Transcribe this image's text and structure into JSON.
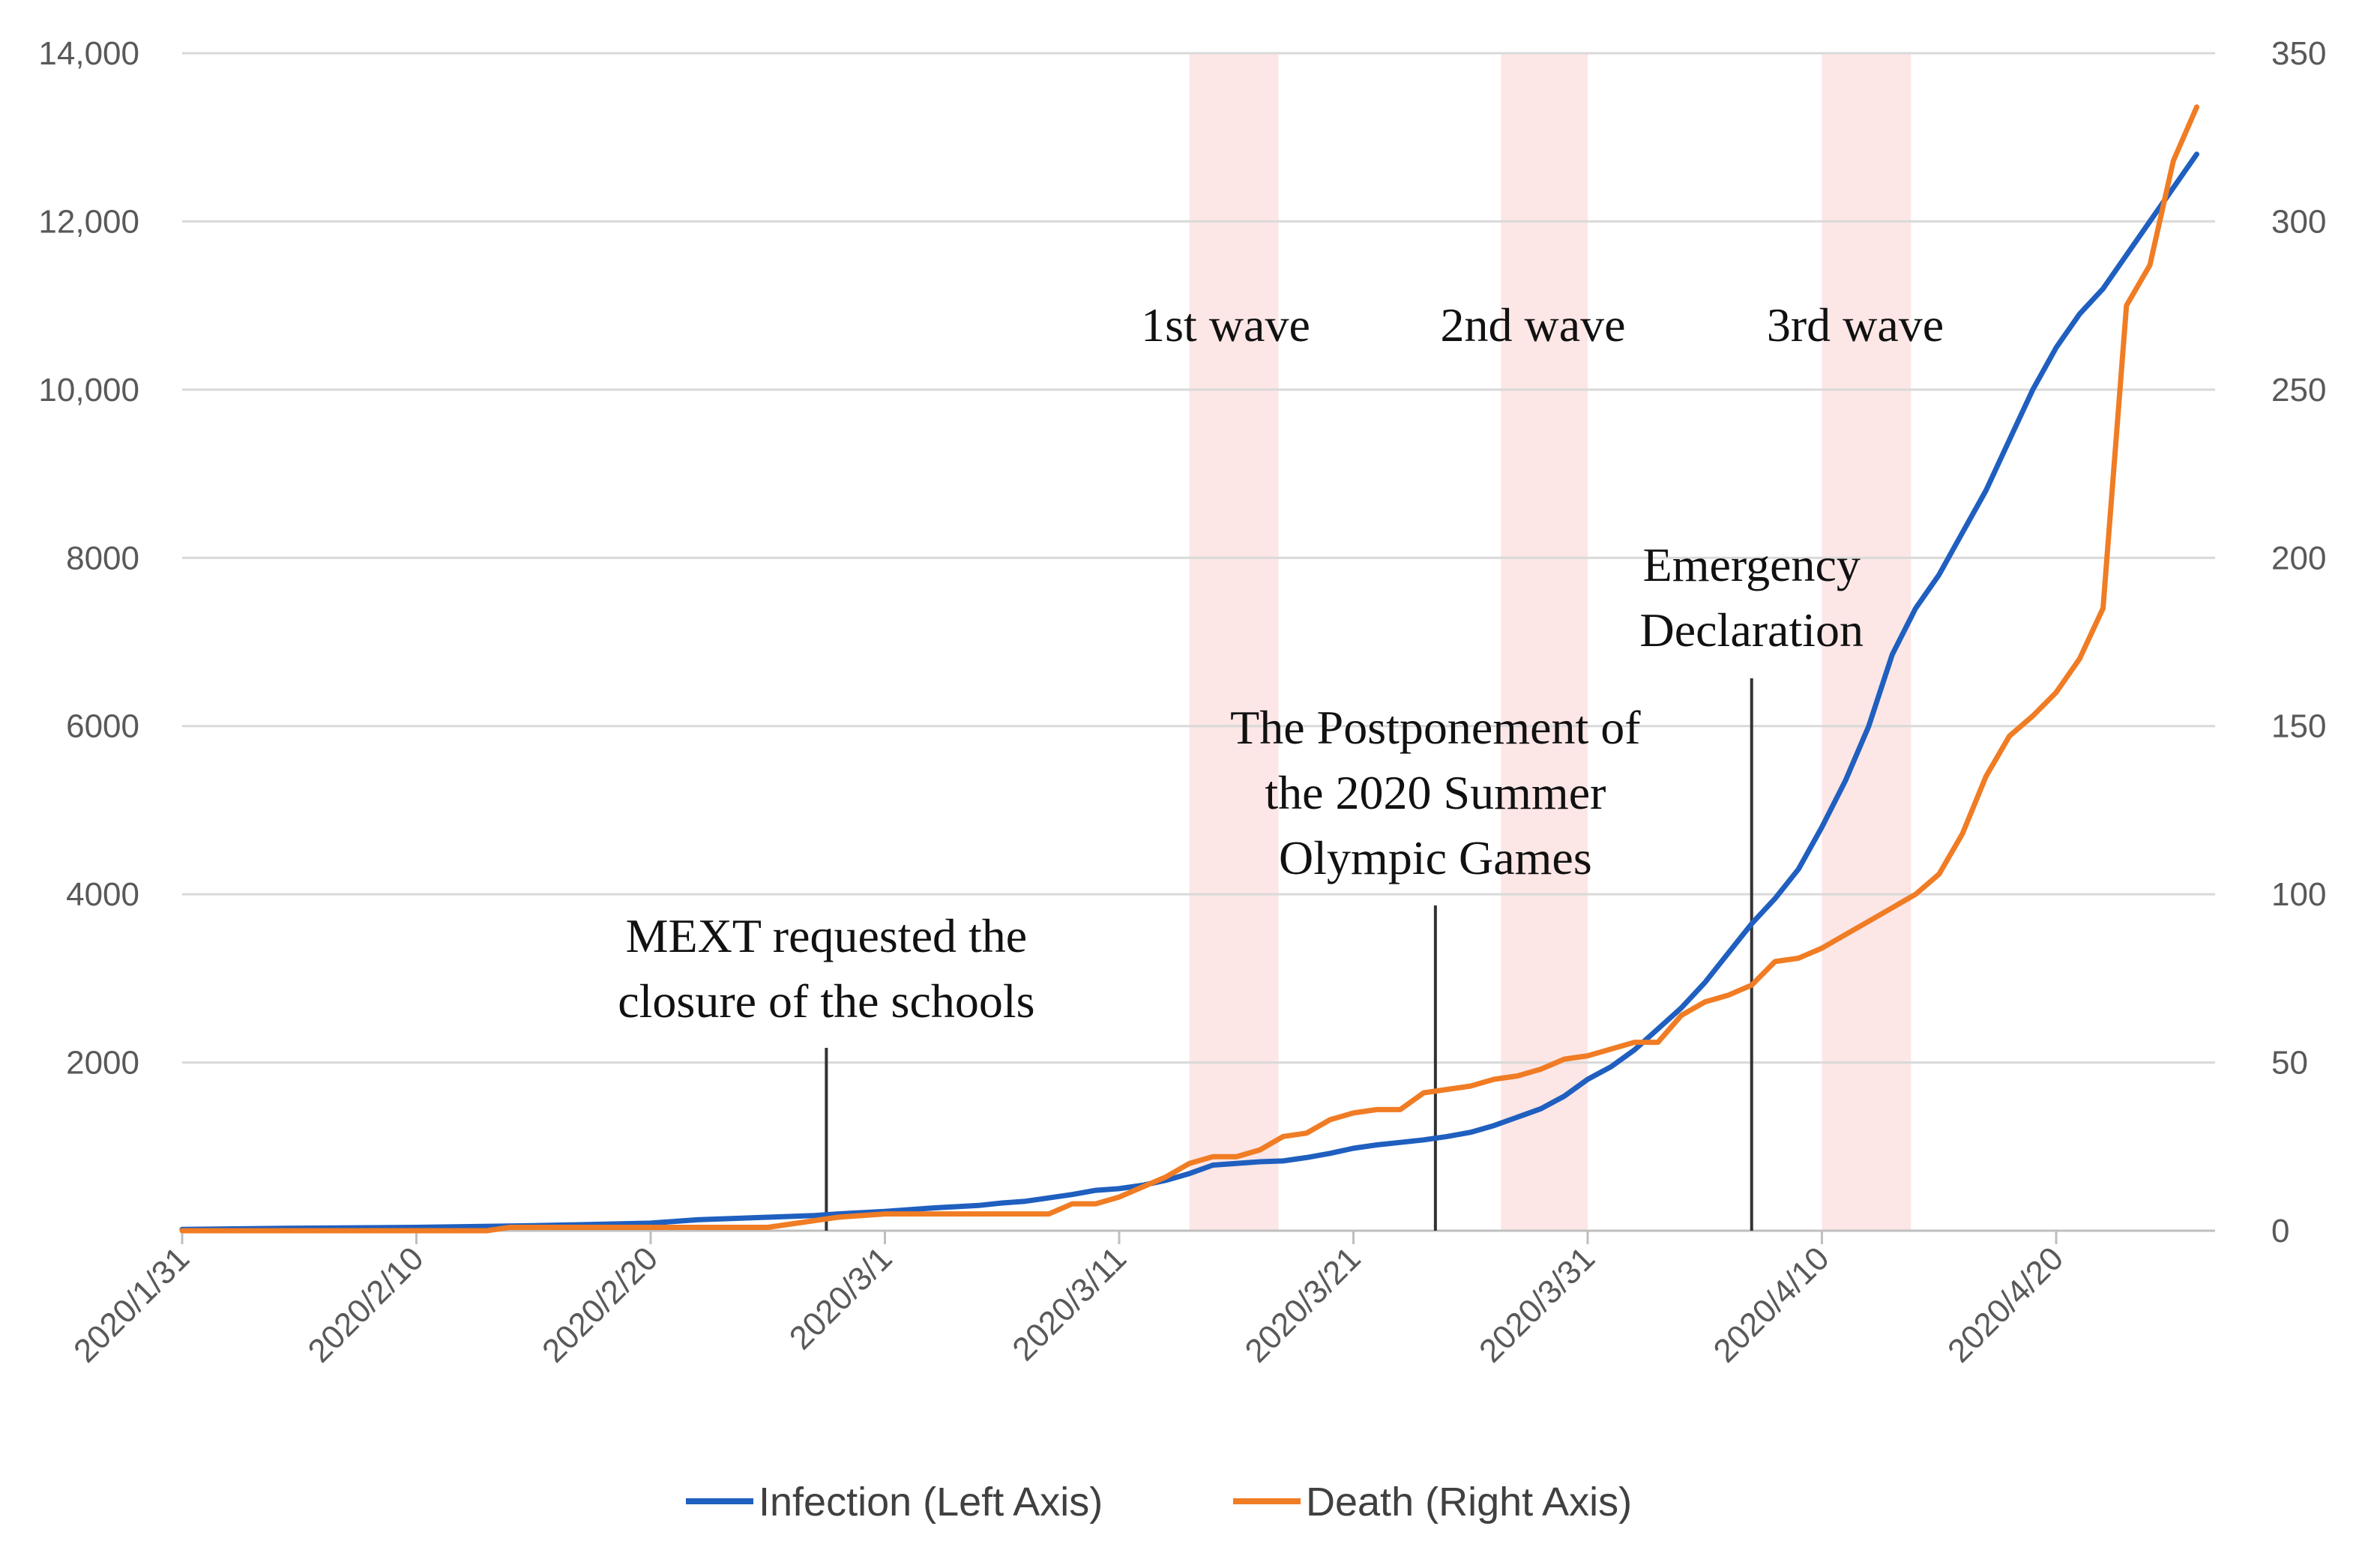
{
  "chart_data": {
    "type": "line",
    "title": "",
    "x_ticks": [
      "2020/1/31",
      "2020/2/10",
      "2020/2/20",
      "2020/3/1",
      "2020/3/11",
      "2020/3/21",
      "2020/3/31",
      "2020/4/10",
      "2020/4/20"
    ],
    "x_range_days": [
      0,
      86
    ],
    "x_note": "x values are days since 2020/1/31",
    "y_left": {
      "label": "",
      "range": [
        0,
        14000
      ],
      "ticks": [
        "0",
        "2000",
        "4000",
        "6000",
        "8000",
        "10,000",
        "12,000",
        "14,000"
      ],
      "tick_values": [
        0,
        2000,
        4000,
        6000,
        8000,
        10000,
        12000,
        14000
      ],
      "hide_zero": true
    },
    "y_right": {
      "label": "",
      "range": [
        0,
        350
      ],
      "ticks": [
        "0",
        "50",
        "100",
        "150",
        "200",
        "250",
        "300",
        "350"
      ],
      "tick_values": [
        0,
        50,
        100,
        150,
        200,
        250,
        300,
        350
      ]
    },
    "series": [
      {
        "name": "Infection (Left Axis)",
        "axis": "left",
        "color": "#1f5fbf",
        "points": [
          [
            0,
            15
          ],
          [
            5,
            30
          ],
          [
            10,
            40
          ],
          [
            15,
            60
          ],
          [
            20,
            90
          ],
          [
            22,
            130
          ],
          [
            25,
            160
          ],
          [
            27,
            180
          ],
          [
            28,
            200
          ],
          [
            30,
            230
          ],
          [
            32,
            270
          ],
          [
            34,
            300
          ],
          [
            35,
            330
          ],
          [
            36,
            350
          ],
          [
            38,
            430
          ],
          [
            39,
            480
          ],
          [
            40,
            500
          ],
          [
            41,
            540
          ],
          [
            42,
            600
          ],
          [
            43,
            680
          ],
          [
            44,
            780
          ],
          [
            45,
            800
          ],
          [
            46,
            820
          ],
          [
            47,
            830
          ],
          [
            48,
            870
          ],
          [
            49,
            920
          ],
          [
            50,
            980
          ],
          [
            51,
            1020
          ],
          [
            52,
            1050
          ],
          [
            53,
            1080
          ],
          [
            54,
            1120
          ],
          [
            55,
            1170
          ],
          [
            56,
            1250
          ],
          [
            57,
            1350
          ],
          [
            58,
            1450
          ],
          [
            59,
            1600
          ],
          [
            60,
            1800
          ],
          [
            61,
            1950
          ],
          [
            62,
            2150
          ],
          [
            63,
            2400
          ],
          [
            64,
            2650
          ],
          [
            65,
            2950
          ],
          [
            66,
            3300
          ],
          [
            67,
            3650
          ],
          [
            68,
            3950
          ],
          [
            69,
            4300
          ],
          [
            70,
            4800
          ],
          [
            71,
            5350
          ],
          [
            72,
            6000
          ],
          [
            73,
            6850
          ],
          [
            74,
            7400
          ],
          [
            75,
            7800
          ],
          [
            76,
            8300
          ],
          [
            77,
            8800
          ],
          [
            78,
            9400
          ],
          [
            79,
            10000
          ],
          [
            80,
            10500
          ],
          [
            81,
            10900
          ],
          [
            82,
            11200
          ],
          [
            83,
            11600
          ],
          [
            84,
            12000
          ],
          [
            85,
            12400
          ],
          [
            86,
            12800
          ]
        ]
      },
      {
        "name": "Death (Right Axis)",
        "axis": "right",
        "color": "#f07c24",
        "points": [
          [
            0,
            0
          ],
          [
            13,
            0
          ],
          [
            14,
            1
          ],
          [
            20,
            1
          ],
          [
            25,
            1
          ],
          [
            26,
            2
          ],
          [
            27,
            3
          ],
          [
            28,
            4
          ],
          [
            30,
            5
          ],
          [
            34,
            5
          ],
          [
            37,
            5
          ],
          [
            38,
            8
          ],
          [
            39,
            8
          ],
          [
            40,
            10
          ],
          [
            41,
            13
          ],
          [
            42,
            16
          ],
          [
            43,
            20
          ],
          [
            44,
            22
          ],
          [
            45,
            22
          ],
          [
            46,
            24
          ],
          [
            47,
            28
          ],
          [
            48,
            29
          ],
          [
            49,
            33
          ],
          [
            50,
            35
          ],
          [
            51,
            36
          ],
          [
            52,
            36
          ],
          [
            53,
            41
          ],
          [
            54,
            42
          ],
          [
            55,
            43
          ],
          [
            56,
            45
          ],
          [
            57,
            46
          ],
          [
            58,
            48
          ],
          [
            59,
            51
          ],
          [
            60,
            52
          ],
          [
            61,
            54
          ],
          [
            62,
            56
          ],
          [
            63,
            56
          ],
          [
            64,
            64
          ],
          [
            65,
            68
          ],
          [
            66,
            70
          ],
          [
            67,
            73
          ],
          [
            68,
            80
          ],
          [
            69,
            81
          ],
          [
            70,
            84
          ],
          [
            71,
            88
          ],
          [
            72,
            92
          ],
          [
            73,
            96
          ],
          [
            74,
            100
          ],
          [
            75,
            106
          ],
          [
            76,
            118
          ],
          [
            77,
            135
          ],
          [
            78,
            147
          ],
          [
            79,
            153
          ],
          [
            80,
            160
          ],
          [
            81,
            170
          ],
          [
            82,
            185
          ],
          [
            83,
            275
          ],
          [
            84,
            287
          ],
          [
            85,
            318
          ],
          [
            86,
            334
          ]
        ]
      }
    ],
    "wave_bands": [
      {
        "label": "1st wave",
        "start_day": 43,
        "end_day": 46.8
      },
      {
        "label": "2nd wave",
        "start_day": 56.3,
        "end_day": 60
      },
      {
        "label": "3rd wave",
        "start_day": 70,
        "end_day": 73.8
      }
    ],
    "events": [
      {
        "day": 27.5,
        "lines": [
          "MEXT requested the",
          "closure of the schools"
        ]
      },
      {
        "day": 53.5,
        "lines": [
          "The Postponement of",
          "the 2020 Summer",
          "Olympic Games"
        ]
      },
      {
        "day": 67,
        "lines": [
          "Emergency",
          "Declaration"
        ]
      }
    ],
    "band_color": "#fde6e6",
    "grid": true,
    "legend_position": "bottom-center"
  }
}
